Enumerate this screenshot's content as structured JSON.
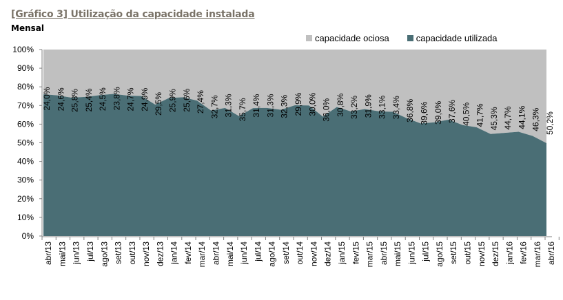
{
  "header": {
    "title": "[Gráfico 3] Utilização da capacidade instalada",
    "subtitle": "Mensal"
  },
  "colors": {
    "ociosa": "#c0c0c0",
    "utilizada": "#4a6e75",
    "title": "#7a7368"
  },
  "chart_data": {
    "type": "area",
    "stacked": true,
    "title": "[Gráfico 3] Utilização da capacidade instalada",
    "subtitle": "Mensal",
    "xlabel": "",
    "ylabel": "",
    "ylim": [
      0,
      100
    ],
    "yticks": [
      "0%",
      "10%",
      "20%",
      "30%",
      "40%",
      "50%",
      "60%",
      "70%",
      "80%",
      "90%",
      "100%"
    ],
    "grid": false,
    "legend_position": "top-right",
    "legend": [
      "capacidade ociosa",
      "capacidade utilizada"
    ],
    "categories": [
      "abr/13",
      "mai/13",
      "jun/13",
      "jul/13",
      "ago/13",
      "set/13",
      "out/13",
      "nov/13",
      "dez/13",
      "jan/14",
      "fev/14",
      "mar/14",
      "abr/14",
      "mai/14",
      "jun/14",
      "jul/14",
      "ago/14",
      "set/14",
      "out/14",
      "nov/14",
      "dez/14",
      "jan/15",
      "fev/15",
      "mar/15",
      "abr/15",
      "mai/15",
      "jun/15",
      "jul/15",
      "ago/15",
      "set/15",
      "out/15",
      "nov/15",
      "dez/15",
      "jan/16",
      "fev/16",
      "mar/16",
      "abr/16"
    ],
    "series": [
      {
        "name": "capacidade utilizada",
        "values": [
          76.0,
          75.4,
          74.2,
          74.6,
          75.5,
          76.2,
          75.3,
          75.1,
          70.5,
          74.1,
          74.4,
          72.6,
          67.3,
          68.7,
          64.3,
          68.6,
          68.7,
          67.7,
          70.1,
          70.0,
          64.0,
          69.2,
          66.8,
          68.1,
          66.9,
          66.6,
          63.2,
          60.4,
          61.0,
          62.4,
          59.5,
          58.3,
          54.7,
          55.3,
          55.9,
          53.7,
          49.8
        ]
      },
      {
        "name": "capacidade ociosa",
        "values": [
          24.0,
          24.6,
          25.8,
          25.4,
          24.5,
          23.8,
          24.7,
          24.9,
          29.5,
          25.9,
          25.6,
          27.4,
          32.7,
          31.3,
          35.7,
          31.4,
          31.3,
          32.3,
          29.9,
          30.0,
          36.0,
          30.8,
          33.2,
          31.9,
          33.1,
          33.4,
          36.8,
          39.6,
          39.0,
          37.6,
          40.5,
          41.7,
          45.3,
          44.7,
          44.1,
          46.3,
          50.2
        ],
        "labels": [
          "24,0%",
          "24,6%",
          "25,8%",
          "25,4%",
          "24,5%",
          "23,8%",
          "24,7%",
          "24,9%",
          "29,5%",
          "25,9%",
          "25,6%",
          "27,4%",
          "32,7%",
          "31,3%",
          "35,7%",
          "31,4%",
          "31,3%",
          "32,3%",
          "29,9%",
          "30,0%",
          "36,0%",
          "30,8%",
          "33,2%",
          "31,9%",
          "33,1%",
          "33,4%",
          "36,8%",
          "39,6%",
          "39,0%",
          "37,6%",
          "40,5%",
          "41,7%",
          "45,3%",
          "44,7%",
          "44,1%",
          "46,3%",
          "50,2%"
        ]
      }
    ]
  }
}
